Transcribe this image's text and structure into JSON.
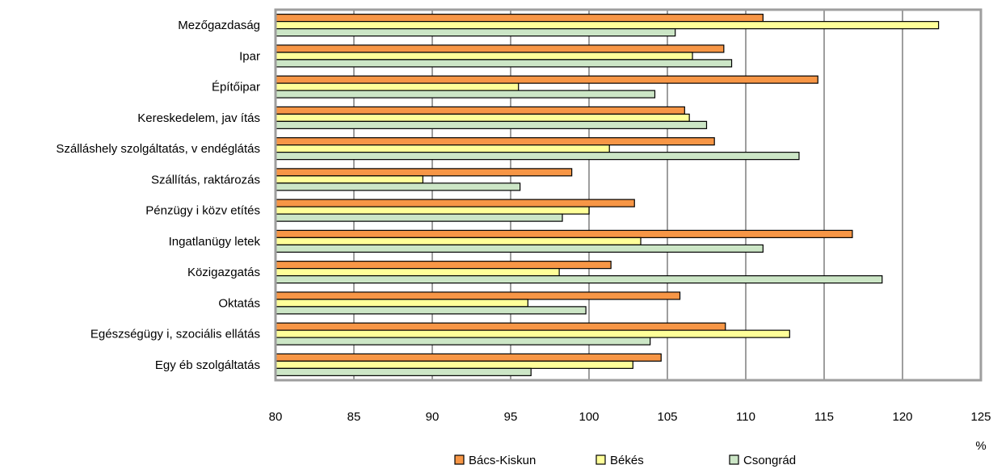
{
  "chart_data": {
    "type": "bar",
    "orientation": "horizontal",
    "categories": [
      "Mezőgazdaság",
      "Ipar",
      "Építőipar",
      "Kereskedelem, jav ítás",
      "Szálláshely szolgáltatás, v endéglátás",
      "Szállítás, raktározás",
      "Pénzügy i közv etítés",
      "Ingatlanügy letek",
      "Közigazgatás",
      "Oktatás",
      "Egészségügy i, szociális ellátás",
      "Egy éb szolgáltatás"
    ],
    "series": [
      {
        "name": "Bács-Kiskun",
        "color": "#F79646",
        "values": [
          111.1,
          108.6,
          114.6,
          106.1,
          108.0,
          98.9,
          102.9,
          116.8,
          101.4,
          105.8,
          108.7,
          104.6
        ]
      },
      {
        "name": "Békés",
        "color": "#FFFF99",
        "values": [
          122.3,
          106.6,
          95.5,
          106.4,
          101.3,
          89.4,
          100.0,
          103.3,
          98.1,
          96.1,
          112.8,
          102.8
        ]
      },
      {
        "name": "Csongrád",
        "color": "#CCE6C6",
        "values": [
          105.5,
          109.1,
          104.2,
          107.5,
          113.4,
          95.6,
          98.3,
          111.1,
          118.7,
          99.8,
          103.9,
          96.3
        ]
      }
    ],
    "xlim": [
      80,
      125
    ],
    "xticks": [
      80,
      85,
      90,
      95,
      100,
      105,
      110,
      115,
      120,
      125
    ],
    "xunit": "%",
    "grid": "vertical",
    "legend_position": "bottom"
  }
}
